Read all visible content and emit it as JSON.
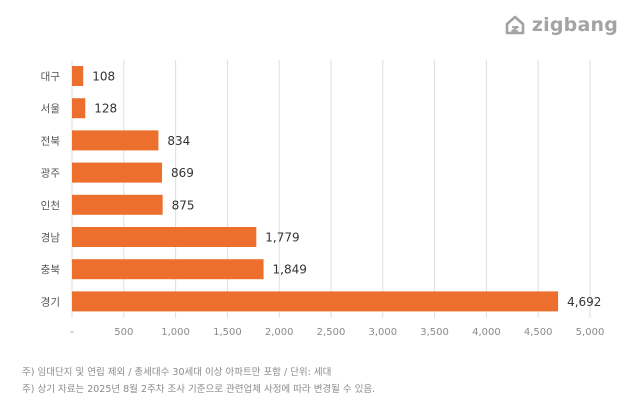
{
  "logo": {
    "text": "zigbang",
    "icon": "zigbang-house-icon",
    "color": "#a3a3a3"
  },
  "chart_data": {
    "type": "bar",
    "orientation": "horizontal",
    "title": "",
    "xlabel": "",
    "ylabel": "",
    "categories": [
      "대구",
      "서울",
      "전북",
      "광주",
      "인천",
      "경남",
      "충북",
      "경기"
    ],
    "values": [
      108,
      128,
      834,
      869,
      875,
      1779,
      1849,
      4692
    ],
    "data_labels": [
      "108",
      "128",
      "834",
      "869",
      "875",
      "1,779",
      "1,849",
      "4,692"
    ],
    "x_ticks": [
      0,
      500,
      1000,
      1500,
      2000,
      2500,
      3000,
      3500,
      4000,
      4500,
      5000
    ],
    "x_tick_labels": [
      "-",
      "500",
      "1,000",
      "1,500",
      "2,000",
      "2,500",
      "3,000",
      "3,500",
      "4,000",
      "4,500",
      "5,000"
    ],
    "xlim": [
      0,
      5000
    ],
    "grid": true,
    "legend": "none",
    "bar_color": "#ec6f2d",
    "grid_color": "#dedede"
  },
  "notes": [
    "주) 임대단지 및 연립 제외 / 총세대수 30세대 이상 아파트만 포함 / 단위: 세대",
    "주) 상기 자료는 2025년 8월 2주차 조사 기준으로 관련업체 사정에 따라 변경될 수 있음."
  ]
}
